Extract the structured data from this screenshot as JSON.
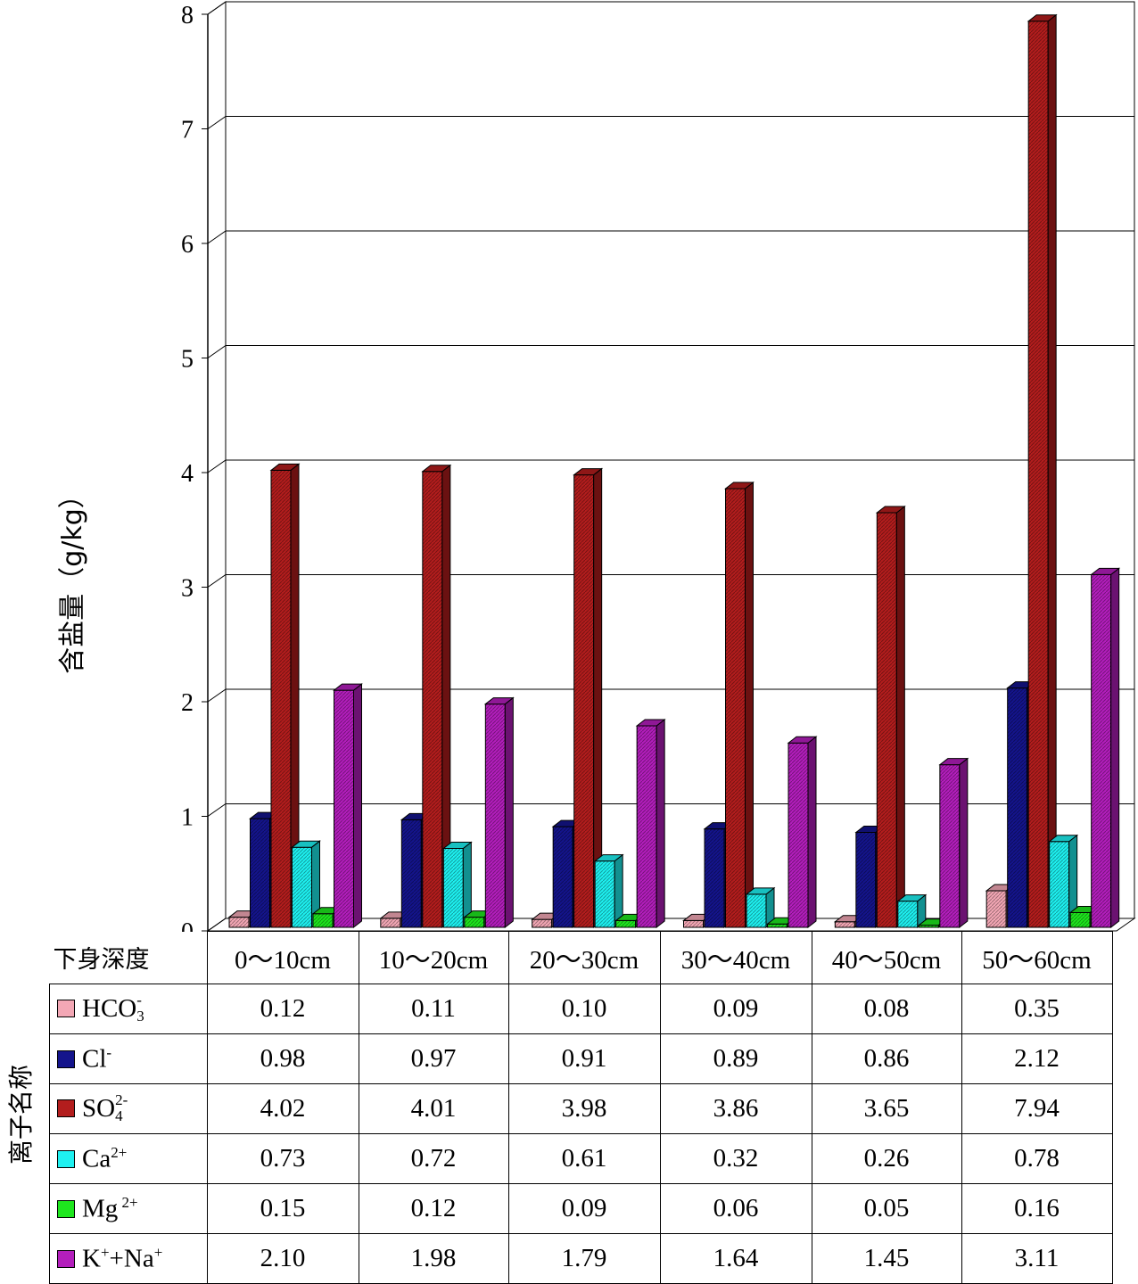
{
  "chart_data": {
    "type": "bar",
    "ylabel": "含盐量（g/kg）",
    "ylim": [
      0,
      8
    ],
    "yticks": [
      "0",
      "1",
      "2",
      "3",
      "4",
      "5",
      "6",
      "7",
      "8"
    ],
    "grid": true,
    "categories": [
      "0～10cm",
      "10～20cm",
      "20～30cm",
      "30～40cm",
      "40～50cm",
      "50～60cm"
    ],
    "series": [
      {
        "name": "HCO3-",
        "color": "#f3a7b5",
        "values": [
          0.12,
          0.11,
          0.1,
          0.09,
          0.08,
          0.35
        ]
      },
      {
        "name": "Cl-",
        "color": "#14148c",
        "values": [
          0.98,
          0.97,
          0.91,
          0.89,
          0.86,
          2.12
        ]
      },
      {
        "name": "SO42-",
        "color": "#b31d1d",
        "values": [
          4.02,
          4.01,
          3.98,
          3.86,
          3.65,
          7.94
        ]
      },
      {
        "name": "Ca2+",
        "color": "#1ef0f0",
        "values": [
          0.73,
          0.72,
          0.61,
          0.32,
          0.26,
          0.78
        ]
      },
      {
        "name": "Mg2+",
        "color": "#1ee61e",
        "values": [
          0.15,
          0.12,
          0.09,
          0.06,
          0.05,
          0.16
        ]
      },
      {
        "name": "K++Na+",
        "color": "#b31ebc",
        "values": [
          2.1,
          1.98,
          1.79,
          1.64,
          1.45,
          3.11
        ]
      }
    ]
  },
  "table": {
    "corner_label": "下身深度",
    "row_group_label": "离子名称",
    "legend_labels": {
      "hco3": {
        "main": "HCO",
        "sub": "3",
        "sup": "-"
      },
      "cl": {
        "main": "Cl",
        "sup": "-"
      },
      "so4": {
        "main": "SO",
        "sub": "4",
        "sup": "2-"
      },
      "ca": {
        "main": "Ca",
        "sup": "2+"
      },
      "mg": {
        "main": "Mg",
        "sup": " 2+"
      },
      "kna": {
        "main1": "K",
        "sup1": "+",
        "main2": "+Na",
        "sup2": "+"
      }
    },
    "rows": [
      [
        "0.12",
        "0.11",
        "0.10",
        "0.09",
        "0.08",
        "0.35"
      ],
      [
        "0.98",
        "0.97",
        "0.91",
        "0.89",
        "0.86",
        "2.12"
      ],
      [
        "4.02",
        "4.01",
        "3.98",
        "3.86",
        "3.65",
        "7.94"
      ],
      [
        "0.73",
        "0.72",
        "0.61",
        "0.32",
        "0.26",
        "0.78"
      ],
      [
        "0.15",
        "0.12",
        "0.09",
        "0.06",
        "0.05",
        "0.16"
      ],
      [
        "2.10",
        "1.98",
        "1.79",
        "1.64",
        "1.45",
        "3.11"
      ]
    ]
  }
}
